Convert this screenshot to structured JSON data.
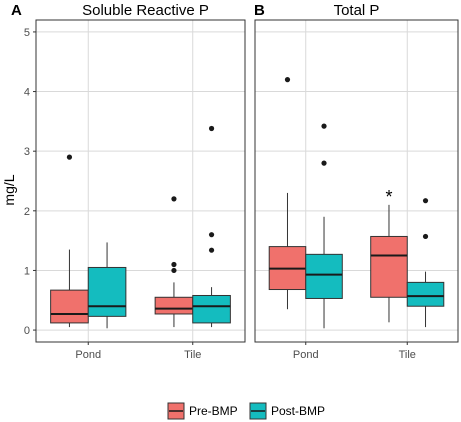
{
  "chart_data": {
    "type": "box",
    "ylabel": "mg/L",
    "ylim": [
      -0.2,
      5.2
    ],
    "yticks": [
      0,
      1,
      2,
      3,
      4,
      5
    ],
    "categories": [
      "Pond",
      "Tile"
    ],
    "colors": {
      "Pre-BMP": "#f0716c",
      "Post-BMP": "#14bcbf"
    },
    "legend": {
      "position": "bottom",
      "entries": [
        "Pre-BMP",
        "Post-BMP"
      ]
    },
    "grid": true,
    "panels": [
      {
        "letter": "A",
        "title": "Soluble Reactive P",
        "annotations": [],
        "boxes": [
          {
            "category": "Pond",
            "series": "Pre-BMP",
            "whisker_low": 0.05,
            "q1": 0.12,
            "median": 0.27,
            "q3": 0.67,
            "whisker_high": 1.35,
            "outliers": [
              2.9
            ]
          },
          {
            "category": "Pond",
            "series": "Post-BMP",
            "whisker_low": 0.03,
            "q1": 0.23,
            "median": 0.4,
            "q3": 1.05,
            "whisker_high": 1.47,
            "outliers": []
          },
          {
            "category": "Tile",
            "series": "Pre-BMP",
            "whisker_low": 0.05,
            "q1": 0.27,
            "median": 0.36,
            "q3": 0.55,
            "whisker_high": 0.8,
            "outliers": [
              1.0,
              1.1,
              2.2
            ]
          },
          {
            "category": "Tile",
            "series": "Post-BMP",
            "whisker_low": 0.05,
            "q1": 0.12,
            "median": 0.4,
            "q3": 0.58,
            "whisker_high": 0.72,
            "outliers": [
              1.34,
              1.6,
              3.38
            ]
          }
        ]
      },
      {
        "letter": "B",
        "title": "Total P",
        "annotations": [
          {
            "text": "*",
            "category": "Tile",
            "series": "Pre-BMP",
            "y": 2.3
          }
        ],
        "boxes": [
          {
            "category": "Pond",
            "series": "Pre-BMP",
            "whisker_low": 0.35,
            "q1": 0.68,
            "median": 1.03,
            "q3": 1.4,
            "whisker_high": 2.3,
            "outliers": [
              4.2
            ]
          },
          {
            "category": "Pond",
            "series": "Post-BMP",
            "whisker_low": 0.03,
            "q1": 0.53,
            "median": 0.93,
            "q3": 1.27,
            "whisker_high": 1.9,
            "outliers": [
              2.8,
              3.42
            ]
          },
          {
            "category": "Tile",
            "series": "Pre-BMP",
            "whisker_low": 0.13,
            "q1": 0.55,
            "median": 1.25,
            "q3": 1.57,
            "whisker_high": 2.1,
            "outliers": []
          },
          {
            "category": "Tile",
            "series": "Post-BMP",
            "whisker_low": 0.05,
            "q1": 0.4,
            "median": 0.57,
            "q3": 0.8,
            "whisker_high": 0.98,
            "outliers": [
              1.57,
              2.17
            ]
          }
        ]
      }
    ]
  }
}
